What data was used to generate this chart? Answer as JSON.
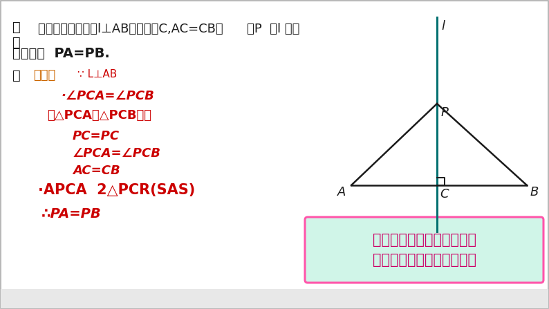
{
  "bg_color": "#ffffff",
  "text_black": "#1a1a1a",
  "text_red": "#cc0000",
  "text_orange": "#cc6600",
  "teal_line_color": "#007070",
  "triangle_color": "#1a1a1a",
  "box_bg": "#d0f5e8",
  "box_border": "#ff55aa",
  "box_text": "线段垂直平分线上的点到这\n条线段两个端点的距离相等",
  "label_l": "l",
  "label_P": "P",
  "label_A": "A",
  "label_B": "B",
  "label_C": "C"
}
